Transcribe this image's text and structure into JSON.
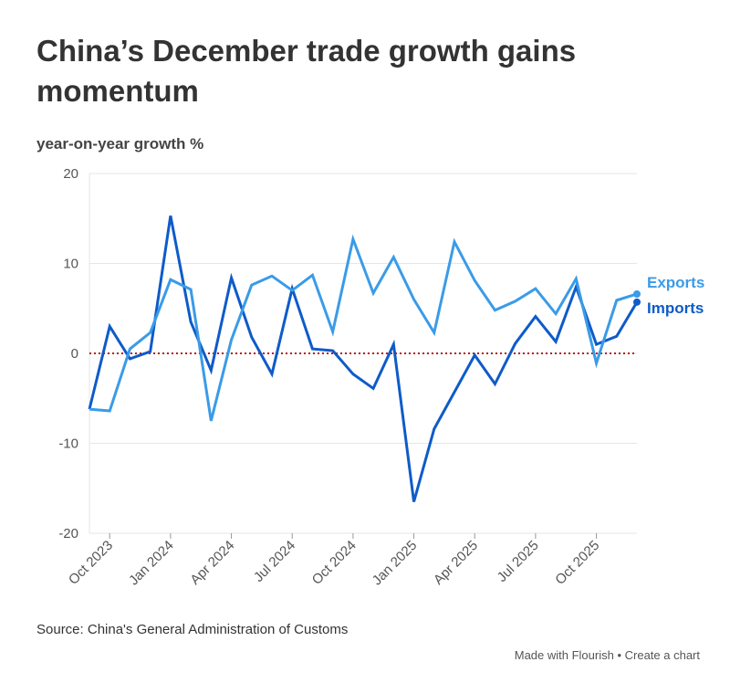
{
  "chart_data": {
    "type": "line",
    "title": "China’s December trade growth gains momentum",
    "ylabel": "year-on-year growth %",
    "xlabel": "",
    "ylim": [
      -20,
      20
    ],
    "yticks": [
      20,
      10,
      0,
      -10,
      -20
    ],
    "grid": true,
    "legend": "inline-right",
    "x": [
      "Sep 2023",
      "Oct 2023",
      "Nov 2023",
      "Dec 2023",
      "Jan 2024",
      "Feb 2024",
      "Mar 2024",
      "Apr 2024",
      "May 2024",
      "Jun 2024",
      "Jul 2024",
      "Aug 2024",
      "Sep 2024",
      "Oct 2024",
      "Nov 2024",
      "Dec 2024",
      "Jan 2025",
      "Feb 2025",
      "Mar 2025",
      "Apr 2025",
      "May 2025",
      "Jun 2025",
      "Jul 2025",
      "Aug 2025",
      "Sep 2025",
      "Oct 2025",
      "Nov 2025",
      "Dec 2025"
    ],
    "xtick_labels": [
      "Oct 2023",
      "Jan 2024",
      "Apr 2024",
      "Jul 2024",
      "Oct 2024",
      "Jan 2025",
      "Apr 2025",
      "Jul 2025",
      "Oct 2025"
    ],
    "reference_line": {
      "y": 0,
      "color": "#b22222",
      "style": "dotted"
    },
    "series": [
      {
        "name": "Exports",
        "color": "#3a9be8",
        "values": [
          -6.2,
          -6.4,
          0.5,
          2.3,
          8.2,
          7.1,
          -7.5,
          1.5,
          7.6,
          8.6,
          7.0,
          8.7,
          2.4,
          12.7,
          6.7,
          10.7,
          6.0,
          2.3,
          12.4,
          8.1,
          4.8,
          5.8,
          7.2,
          4.4,
          8.3,
          -1.1,
          5.9,
          6.6
        ]
      },
      {
        "name": "Imports",
        "color": "#0e5bc9",
        "values": [
          -6.2,
          3.0,
          -0.6,
          0.2,
          15.3,
          3.5,
          -1.9,
          8.4,
          1.8,
          -2.3,
          7.2,
          0.5,
          0.3,
          -2.3,
          -3.9,
          1.0,
          -16.5,
          -8.4,
          -4.3,
          -0.2,
          -3.4,
          1.1,
          4.1,
          1.3,
          7.4,
          1.0,
          1.9,
          5.7
        ]
      }
    ]
  },
  "source": "Source: China's General Administration of Customs",
  "footer": {
    "made_with": "Made with Flourish",
    "separator": " • ",
    "create": "Create a chart"
  }
}
